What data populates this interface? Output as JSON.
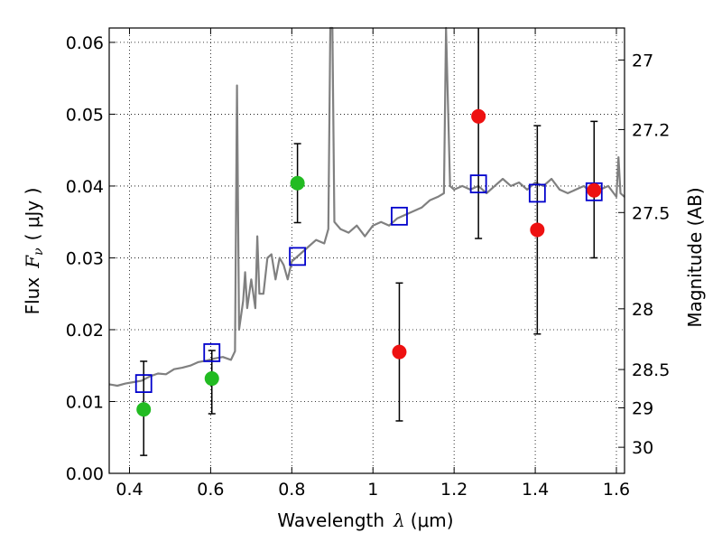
{
  "chart_data": {
    "type": "scatter",
    "xlabel_prefix": "Wavelength",
    "xlabel_symbol": "λ",
    "xlabel_unit": "(μm)",
    "ylabel_prefix": "Flux",
    "ylabel_symbol": "F",
    "ylabel_subscript": "ν",
    "ylabel_unit": "( μJy )",
    "y2label": "Magnitude (AB)",
    "xlim": [
      0.35,
      1.62
    ],
    "ylim": [
      0.0,
      0.062
    ],
    "grid": true,
    "x_ticks": [
      0.4,
      0.6,
      0.8,
      1.0,
      1.2,
      1.4,
      1.6
    ],
    "x_tick_labels": [
      "0.4",
      "0.6",
      "0.8",
      "1",
      "1.2",
      "1.4",
      "1.6"
    ],
    "y_ticks": [
      0.0,
      0.01,
      0.02,
      0.03,
      0.04,
      0.05,
      0.06
    ],
    "y_tick_labels": [
      "0.00",
      "0.01",
      "0.02",
      "0.03",
      "0.04",
      "0.05",
      "0.06"
    ],
    "y2_ticks": [
      27,
      27.2,
      27.5,
      28,
      28.5,
      29,
      30
    ],
    "y2_tick_labels": [
      "27",
      "27.2",
      "27.5",
      "28",
      "28.5",
      "29",
      "30"
    ],
    "series": [
      {
        "kind": "spectrum",
        "color": "#808080",
        "points": [
          [
            0.35,
            0.0124
          ],
          [
            0.37,
            0.0122
          ],
          [
            0.39,
            0.0125
          ],
          [
            0.41,
            0.0127
          ],
          [
            0.43,
            0.0129
          ],
          [
            0.45,
            0.0135
          ],
          [
            0.47,
            0.0139
          ],
          [
            0.49,
            0.0138
          ],
          [
            0.51,
            0.0145
          ],
          [
            0.53,
            0.0147
          ],
          [
            0.55,
            0.015
          ],
          [
            0.57,
            0.0155
          ],
          [
            0.59,
            0.0157
          ],
          [
            0.61,
            0.016
          ],
          [
            0.63,
            0.0162
          ],
          [
            0.65,
            0.0158
          ],
          [
            0.66,
            0.017
          ],
          [
            0.665,
            0.054
          ],
          [
            0.67,
            0.02
          ],
          [
            0.68,
            0.024
          ],
          [
            0.685,
            0.028
          ],
          [
            0.69,
            0.023
          ],
          [
            0.7,
            0.027
          ],
          [
            0.71,
            0.023
          ],
          [
            0.715,
            0.033
          ],
          [
            0.72,
            0.025
          ],
          [
            0.73,
            0.025
          ],
          [
            0.74,
            0.03
          ],
          [
            0.75,
            0.0305
          ],
          [
            0.76,
            0.027
          ],
          [
            0.77,
            0.03
          ],
          [
            0.78,
            0.029
          ],
          [
            0.79,
            0.027
          ],
          [
            0.8,
            0.0295
          ],
          [
            0.82,
            0.0305
          ],
          [
            0.84,
            0.0315
          ],
          [
            0.86,
            0.0325
          ],
          [
            0.88,
            0.032
          ],
          [
            0.89,
            0.034
          ],
          [
            0.895,
            0.062
          ],
          [
            0.9,
            0.062
          ],
          [
            0.905,
            0.035
          ],
          [
            0.92,
            0.034
          ],
          [
            0.94,
            0.0335
          ],
          [
            0.96,
            0.0345
          ],
          [
            0.98,
            0.033
          ],
          [
            1.0,
            0.0345
          ],
          [
            1.02,
            0.035
          ],
          [
            1.04,
            0.0345
          ],
          [
            1.06,
            0.0355
          ],
          [
            1.08,
            0.036
          ],
          [
            1.1,
            0.0365
          ],
          [
            1.12,
            0.037
          ],
          [
            1.14,
            0.038
          ],
          [
            1.16,
            0.0385
          ],
          [
            1.175,
            0.039
          ],
          [
            1.18,
            0.062
          ],
          [
            1.19,
            0.04
          ],
          [
            1.2,
            0.0395
          ],
          [
            1.22,
            0.04
          ],
          [
            1.24,
            0.0395
          ],
          [
            1.26,
            0.04
          ],
          [
            1.28,
            0.039
          ],
          [
            1.3,
            0.04
          ],
          [
            1.32,
            0.041
          ],
          [
            1.34,
            0.04
          ],
          [
            1.36,
            0.0405
          ],
          [
            1.38,
            0.0395
          ],
          [
            1.4,
            0.0405
          ],
          [
            1.42,
            0.04
          ],
          [
            1.44,
            0.041
          ],
          [
            1.46,
            0.0395
          ],
          [
            1.48,
            0.039
          ],
          [
            1.5,
            0.0395
          ],
          [
            1.52,
            0.04
          ],
          [
            1.54,
            0.039
          ],
          [
            1.56,
            0.0395
          ],
          [
            1.58,
            0.04
          ],
          [
            1.6,
            0.0385
          ],
          [
            1.605,
            0.044
          ],
          [
            1.61,
            0.039
          ],
          [
            1.62,
            0.0385
          ]
        ]
      },
      {
        "kind": "model-photometry",
        "color": "#0000cc",
        "marker": "open-square",
        "points": [
          [
            0.435,
            0.0125
          ],
          [
            0.603,
            0.0168
          ],
          [
            0.814,
            0.0302
          ],
          [
            1.065,
            0.0358
          ],
          [
            1.26,
            0.0403
          ],
          [
            1.405,
            0.039
          ],
          [
            1.545,
            0.0392
          ]
        ]
      },
      {
        "kind": "observed-green",
        "color": "#22bb22",
        "marker": "filled-circle",
        "points": [
          [
            0.435,
            0.0089
          ],
          [
            0.603,
            0.0132
          ],
          [
            0.814,
            0.0404
          ]
        ],
        "errors": [
          [
            0.0025,
            0.0156
          ],
          [
            0.0083,
            0.0171
          ],
          [
            0.0349,
            0.0459
          ]
        ]
      },
      {
        "kind": "observed-red",
        "color": "#ee1111",
        "marker": "filled-circle",
        "points": [
          [
            1.065,
            0.0169
          ],
          [
            1.26,
            0.0497
          ],
          [
            1.405,
            0.0339
          ],
          [
            1.545,
            0.0394
          ]
        ],
        "errors": [
          [
            0.0073,
            0.0265
          ],
          [
            0.0327,
            0.0635
          ],
          [
            0.0194,
            0.0484
          ],
          [
            0.03,
            0.049
          ]
        ]
      }
    ]
  }
}
